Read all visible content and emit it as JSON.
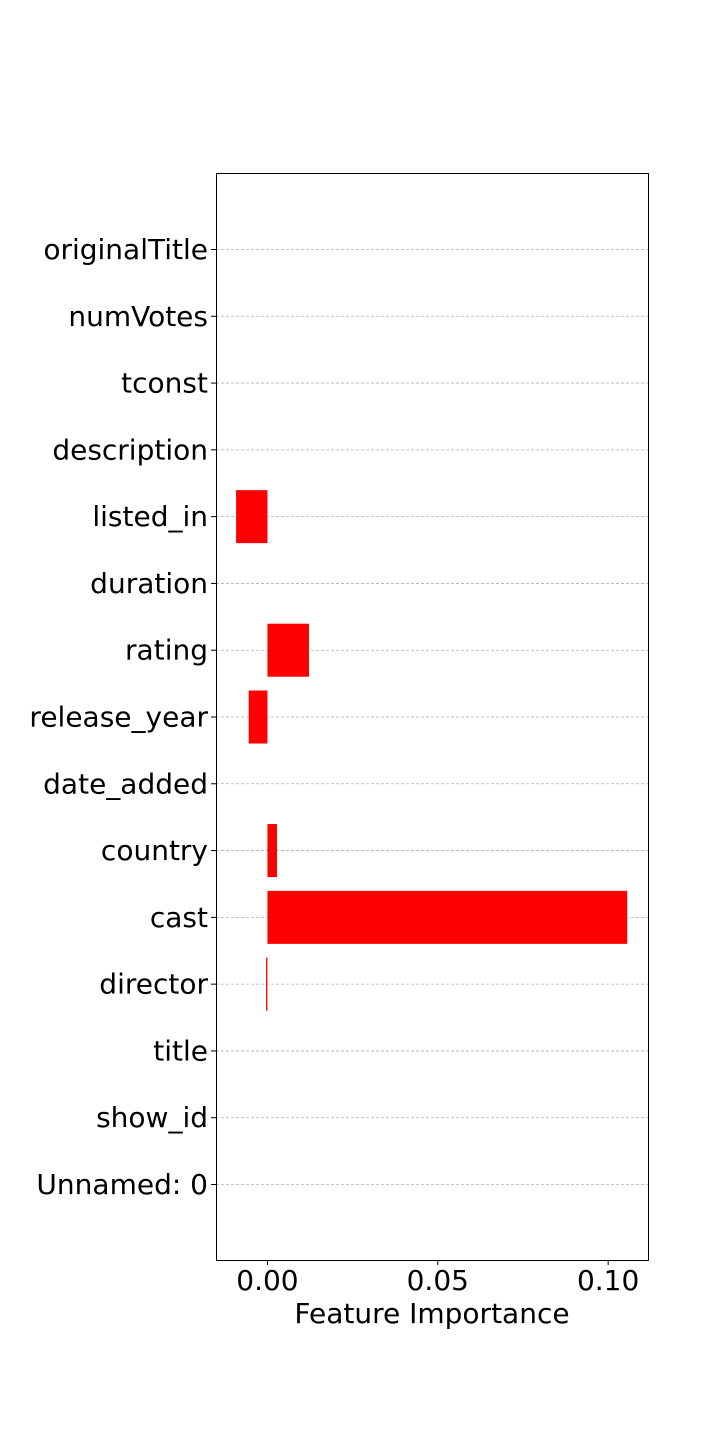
{
  "chart_data": {
    "type": "bar",
    "orientation": "horizontal",
    "categories": [
      "Unnamed: 0",
      "show_id",
      "title",
      "director",
      "cast",
      "country",
      "date_added",
      "release_year",
      "rating",
      "duration",
      "listed_in",
      "description",
      "tconst",
      "numVotes",
      "originalTitle"
    ],
    "values": [
      0.0,
      0.0,
      0.0,
      -0.0004,
      0.1056,
      0.0028,
      0.0,
      -0.0055,
      0.0122,
      0.0,
      -0.0092,
      0.0,
      0.0,
      0.0,
      0.0
    ],
    "xlabel": "Feature Importance",
    "ylabel": "",
    "title": "",
    "xlim": [
      -0.0151,
      0.1117
    ],
    "xticks": [
      0.0,
      0.05,
      0.1
    ],
    "xtick_labels": [
      "0.00",
      "0.05",
      "0.10"
    ],
    "grid": "horizontal dashed",
    "colors": {
      "bar": "#ff0000",
      "grid": "#b0b0b0",
      "axis": "#000000"
    }
  }
}
